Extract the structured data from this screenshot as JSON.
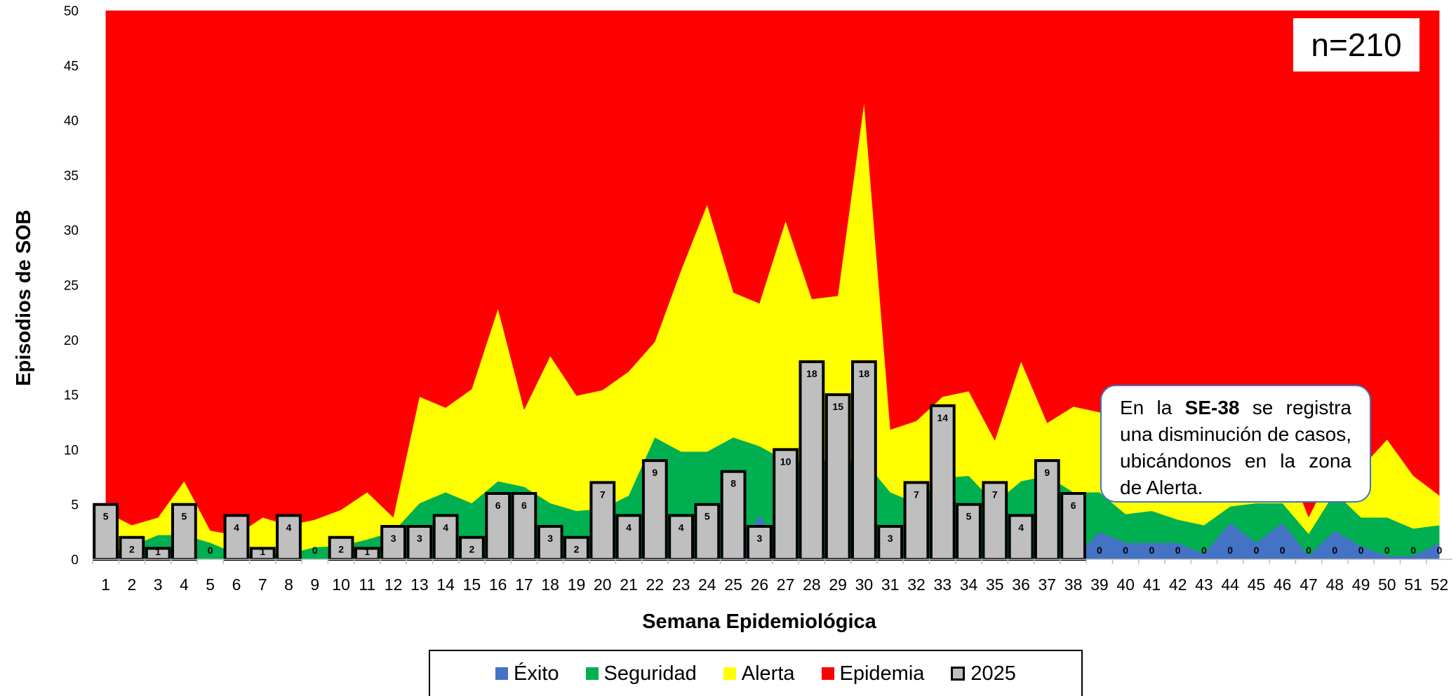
{
  "chart_data": {
    "type": "area",
    "xlabel": "Semana Epidemiológica",
    "ylabel": "Episodios de SOB",
    "ylim": [
      0,
      50
    ],
    "yticks": [
      0,
      5,
      10,
      15,
      20,
      25,
      30,
      35,
      40,
      45,
      50
    ],
    "categories": [
      "1",
      "2",
      "3",
      "4",
      "5",
      "6",
      "7",
      "8",
      "9",
      "10",
      "11",
      "12",
      "13",
      "14",
      "15",
      "16",
      "17",
      "18",
      "19",
      "20",
      "21",
      "22",
      "23",
      "24",
      "25",
      "26",
      "27",
      "28",
      "29",
      "30",
      "31",
      "32",
      "33",
      "34",
      "35",
      "36",
      "37",
      "38",
      "39",
      "40",
      "41",
      "42",
      "43",
      "44",
      "45",
      "46",
      "47",
      "48",
      "49",
      "50",
      "51",
      "52"
    ],
    "series": [
      {
        "name": "Éxito",
        "kind": "area",
        "color": "#4472c4",
        "values": [
          0,
          0,
          0,
          0,
          0,
          0,
          0,
          0,
          0,
          0,
          0,
          0,
          0,
          0,
          0,
          0,
          0,
          0,
          0,
          0,
          0,
          0,
          0,
          0,
          0,
          4,
          0,
          0,
          0,
          0,
          0,
          0,
          0,
          0,
          0,
          0,
          0,
          0,
          2.5,
          1.5,
          1.5,
          1.5,
          0.5,
          3.3,
          1.5,
          3.3,
          0.3,
          2.6,
          1.2,
          0.3,
          0.3,
          1.5
        ]
      },
      {
        "name": "Seguridad",
        "kind": "area",
        "color": "#00b050",
        "values": [
          0.5,
          1.2,
          2.2,
          2.2,
          1.5,
          0.5,
          0.5,
          0.5,
          1.1,
          1.2,
          1.8,
          2.5,
          5.1,
          6.1,
          5.1,
          7.1,
          6.6,
          5.1,
          4.4,
          4.6,
          5.8,
          11.1,
          9.8,
          9.8,
          11.1,
          10.3,
          9,
          9,
          9,
          9,
          6.1,
          5.1,
          7.4,
          7.6,
          5.1,
          7.1,
          7.6,
          6.1,
          6.1,
          4.1,
          4.4,
          3.6,
          3.1,
          4.8,
          5.1,
          5.1,
          2.3,
          6.1,
          3.8,
          3.8,
          2.8,
          3.1
        ]
      },
      {
        "name": "Alerta",
        "kind": "area",
        "color": "#ffff00",
        "values": [
          4.3,
          3.1,
          3.8,
          7.1,
          2.6,
          2.2,
          3.8,
          3.1,
          3.6,
          4.5,
          6.1,
          3.8,
          14.8,
          13.8,
          15.5,
          22.8,
          13.6,
          18.5,
          14.9,
          15.4,
          17.1,
          19.8,
          26.3,
          32.3,
          24.3,
          23.3,
          30.8,
          23.7,
          24,
          41.5,
          11.8,
          12.6,
          14.8,
          15.3,
          10.8,
          18,
          12.4,
          13.9,
          13.4,
          12.1,
          12.1,
          11.3,
          10.4,
          9.8,
          9.8,
          9.8,
          3.8,
          8.6,
          8.3,
          10.9,
          7.6,
          5.8
        ]
      },
      {
        "name": "Epidemia",
        "kind": "area",
        "color": "#ff0000",
        "values": [
          50,
          50,
          50,
          50,
          50,
          50,
          50,
          50,
          50,
          50,
          50,
          50,
          50,
          50,
          50,
          50,
          50,
          50,
          50,
          50,
          50,
          50,
          50,
          50,
          50,
          50,
          50,
          50,
          50,
          50,
          50,
          50,
          50,
          50,
          50,
          50,
          50,
          50,
          50,
          50,
          50,
          50,
          50,
          50,
          50,
          50,
          50,
          50,
          50,
          50,
          50,
          50
        ]
      },
      {
        "name": "2025",
        "kind": "bar",
        "color": "#bfbfbf",
        "values": [
          5,
          2,
          1,
          5,
          0,
          4,
          1,
          4,
          0,
          2,
          1,
          3,
          3,
          4,
          2,
          6,
          6,
          3,
          2,
          7,
          4,
          9,
          4,
          5,
          8,
          3,
          10,
          18,
          15,
          18,
          3,
          7,
          14,
          5,
          7,
          4,
          9,
          6,
          0,
          0,
          0,
          0,
          0,
          0,
          0,
          0,
          0,
          0,
          0,
          0,
          0,
          0
        ]
      }
    ],
    "legend_position": "bottom",
    "annotations": {
      "n_label": "n=210",
      "note_prefix": "En la ",
      "note_bold": "SE-38",
      "note_suffix": " se registra una disminución de casos, ubicándonos en la zona de Alerta."
    }
  },
  "legend": {
    "items": [
      {
        "label": "Éxito",
        "color": "#4472c4"
      },
      {
        "label": "Seguridad",
        "color": "#00b050"
      },
      {
        "label": "Alerta",
        "color": "#ffff00"
      },
      {
        "label": "Epidemia",
        "color": "#ff0000"
      },
      {
        "label": "2025",
        "color": "#bfbfbf"
      }
    ]
  }
}
